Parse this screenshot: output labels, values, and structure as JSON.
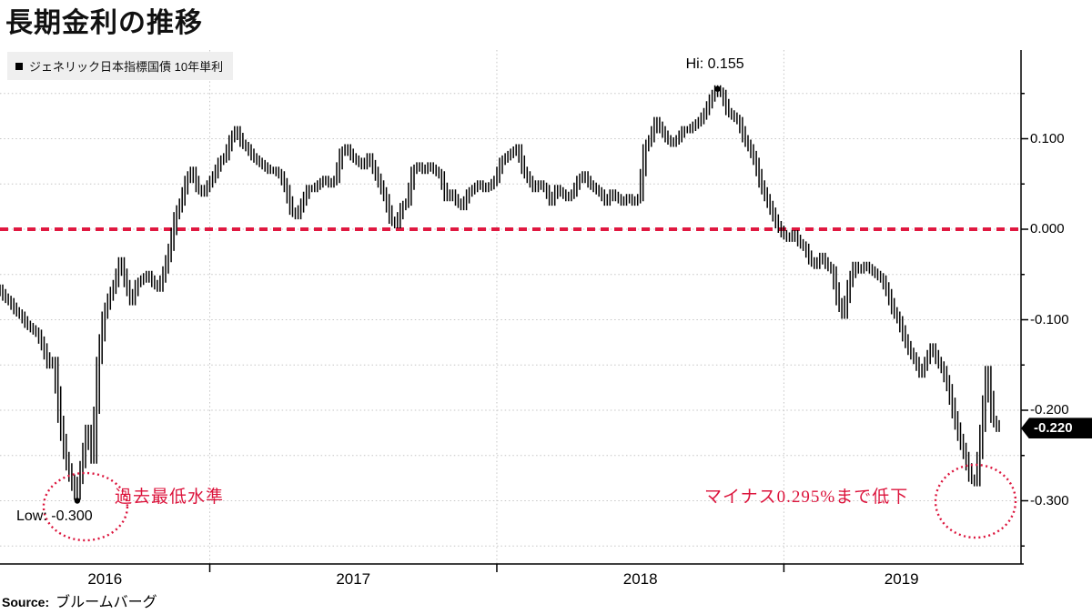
{
  "page": {
    "title": "長期金利の推移",
    "source_label": "Source:",
    "source_value": "ブルームバーグ"
  },
  "legend": {
    "series_label": "ジェネリック日本指標国債 10年単利"
  },
  "annotations": {
    "hi_label": "Hi: 0.155",
    "low_label": "Low: -0.300",
    "record_low_2016": "過去最低水準",
    "decline_2019": "マイナス0.295%まで低下",
    "last_value_badge": "-0.220"
  },
  "colors": {
    "bars": "#000000",
    "axis": "#000000",
    "grid": "#c6c6c6",
    "zero_line": "#e01840",
    "annotation_red": "#dc143c",
    "badge_bg": "#000000",
    "badge_text": "#ffffff"
  },
  "chart_data": {
    "type": "line",
    "style": "hlc-bars",
    "title": "長期金利の推移",
    "series_name": "ジェネリック日本指標国債 10年単利",
    "unit": "%",
    "grid": "dotted",
    "legend_position": "top-left",
    "x_years": [
      "2016",
      "2017",
      "2018",
      "2019"
    ],
    "year_start_indices": [
      38,
      90,
      142
    ],
    "y_ticks_major": [
      0.1,
      0.0,
      -0.1,
      -0.2,
      -0.3
    ],
    "y_tick_labels": [
      "0.100",
      "0.000",
      "-0.100",
      "-0.200",
      "-0.300"
    ],
    "y_grid_step": 0.05,
    "ylim": [
      -0.37,
      0.198
    ],
    "zero_reference": 0.0,
    "hi": 0.155,
    "low": -0.3,
    "last": -0.22,
    "bar_halfrange": 0.004,
    "values": [
      -0.065,
      -0.075,
      -0.08,
      -0.09,
      -0.095,
      -0.105,
      -0.11,
      -0.115,
      -0.13,
      -0.15,
      -0.145,
      -0.21,
      -0.25,
      -0.275,
      -0.295,
      -0.26,
      -0.22,
      -0.255,
      -0.145,
      -0.095,
      -0.075,
      -0.06,
      -0.035,
      -0.06,
      -0.08,
      -0.06,
      -0.055,
      -0.05,
      -0.06,
      -0.065,
      -0.045,
      -0.02,
      0.015,
      0.03,
      0.055,
      0.065,
      0.045,
      0.04,
      0.05,
      0.06,
      0.075,
      0.08,
      0.1,
      0.11,
      0.095,
      0.09,
      0.08,
      0.075,
      0.07,
      0.065,
      0.065,
      0.06,
      0.045,
      0.02,
      0.015,
      0.03,
      0.045,
      0.045,
      0.05,
      0.055,
      0.05,
      0.055,
      0.085,
      0.09,
      0.08,
      0.075,
      0.07,
      0.08,
      0.065,
      0.05,
      0.035,
      0.01,
      0.005,
      0.025,
      0.03,
      0.065,
      0.07,
      0.065,
      0.07,
      0.065,
      0.06,
      0.035,
      0.04,
      0.03,
      0.025,
      0.04,
      0.045,
      0.05,
      0.045,
      0.048,
      0.055,
      0.075,
      0.08,
      0.085,
      0.09,
      0.065,
      0.055,
      0.045,
      0.05,
      0.045,
      0.03,
      0.045,
      0.04,
      0.035,
      0.04,
      0.055,
      0.06,
      0.05,
      0.045,
      0.04,
      0.03,
      0.04,
      0.035,
      0.03,
      0.035,
      0.03,
      0.035,
      0.09,
      0.1,
      0.12,
      0.11,
      0.1,
      0.095,
      0.1,
      0.11,
      0.11,
      0.115,
      0.12,
      0.13,
      0.145,
      0.155,
      0.15,
      0.13,
      0.125,
      0.12,
      0.1,
      0.09,
      0.075,
      0.05,
      0.035,
      0.02,
      0.005,
      -0.005,
      -0.01,
      -0.005,
      -0.015,
      -0.02,
      -0.035,
      -0.04,
      -0.03,
      -0.04,
      -0.045,
      -0.08,
      -0.095,
      -0.06,
      -0.04,
      -0.045,
      -0.04,
      -0.045,
      -0.05,
      -0.055,
      -0.07,
      -0.09,
      -0.1,
      -0.12,
      -0.135,
      -0.145,
      -0.16,
      -0.145,
      -0.13,
      -0.145,
      -0.155,
      -0.175,
      -0.205,
      -0.23,
      -0.25,
      -0.275,
      -0.28,
      -0.22,
      -0.155,
      -0.21,
      -0.22
    ]
  }
}
